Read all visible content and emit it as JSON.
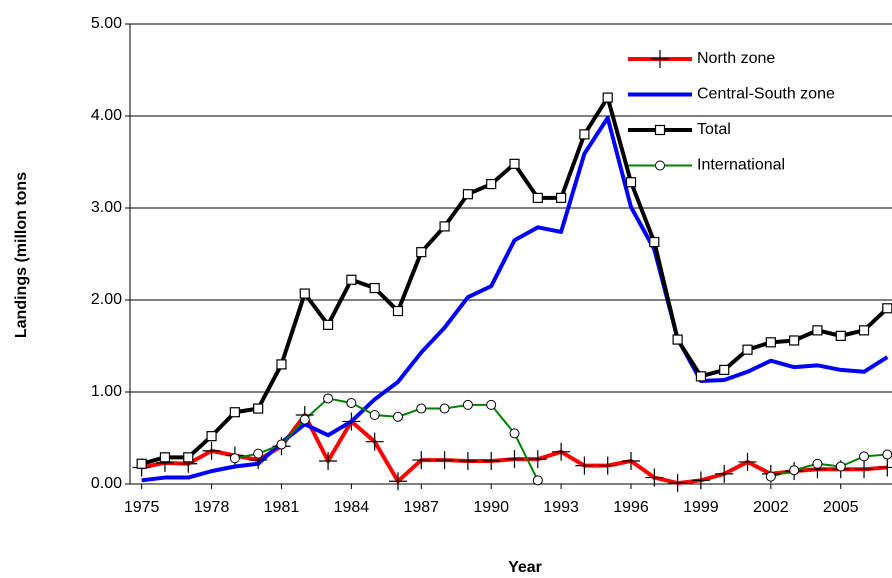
{
  "chart_data": {
    "type": "line",
    "y_label": "Landings (millon tons",
    "x_label": "Year",
    "x": [
      1975,
      1976,
      1977,
      1978,
      1979,
      1980,
      1981,
      1982,
      1983,
      1984,
      1985,
      1986,
      1987,
      1988,
      1989,
      1990,
      1991,
      1992,
      1993,
      1994,
      1995,
      1996,
      1997,
      1998,
      1999,
      2000,
      2001,
      2002,
      2003,
      2004,
      2005,
      2006,
      2007
    ],
    "series": [
      {
        "name": "North zone",
        "color": "#ff0000",
        "marker": "plus",
        "values": [
          0.18,
          0.23,
          0.22,
          0.36,
          0.31,
          0.26,
          0.41,
          0.75,
          0.25,
          0.68,
          0.46,
          0.03,
          0.26,
          0.26,
          0.25,
          0.25,
          0.27,
          0.27,
          0.35,
          0.2,
          0.2,
          0.25,
          0.07,
          0.01,
          0.04,
          0.11,
          0.24,
          0.11,
          0.14,
          0.16,
          0.16,
          0.16,
          0.18
        ]
      },
      {
        "name": "Central-South zone",
        "color": "#0000ff",
        "values": [
          0.04,
          0.07,
          0.07,
          0.14,
          0.19,
          0.22,
          0.45,
          0.65,
          0.53,
          0.68,
          0.92,
          1.11,
          1.43,
          1.7,
          2.03,
          2.15,
          2.65,
          2.79,
          2.74,
          3.59,
          3.98,
          3.01,
          2.55,
          1.58,
          1.12,
          1.13,
          1.22,
          1.34,
          1.27,
          1.29,
          1.24,
          1.22,
          1.38
        ]
      },
      {
        "name": "Total",
        "color": "#000000",
        "marker": "square",
        "values": [
          0.22,
          0.29,
          0.29,
          0.52,
          0.78,
          0.82,
          1.3,
          2.07,
          1.73,
          2.22,
          2.13,
          1.88,
          2.52,
          2.8,
          3.15,
          3.26,
          3.48,
          3.11,
          3.11,
          3.8,
          4.2,
          3.28,
          2.63,
          1.57,
          1.17,
          1.24,
          1.46,
          1.54,
          1.56,
          1.67,
          1.61,
          1.67,
          1.91
        ]
      },
      {
        "name": "International",
        "color": "#008000",
        "marker": "circle",
        "values": [
          null,
          null,
          null,
          null,
          0.28,
          0.33,
          0.43,
          0.7,
          0.93,
          0.88,
          0.75,
          0.73,
          0.82,
          0.82,
          0.86,
          0.86,
          0.55,
          0.04,
          null,
          null,
          null,
          null,
          null,
          null,
          null,
          null,
          null,
          0.08,
          0.15,
          0.22,
          0.19,
          0.3,
          0.32
        ]
      }
    ],
    "xlim": [
      1974.5,
      2007.2
    ],
    "xticks": [
      1975,
      1978,
      1981,
      1984,
      1987,
      1990,
      1993,
      1996,
      1999,
      2002,
      2005
    ],
    "ylim": [
      0,
      5
    ],
    "yticks": [
      {
        "value": 0,
        "label": "0.00"
      },
      {
        "value": 1,
        "label": "1.00"
      },
      {
        "value": 2,
        "label": "2.00"
      },
      {
        "value": 3,
        "label": "3.00"
      },
      {
        "value": 4,
        "label": "4.00"
      },
      {
        "value": 5,
        "label": "5.00"
      }
    ],
    "grid": true,
    "legend": "upper right"
  }
}
